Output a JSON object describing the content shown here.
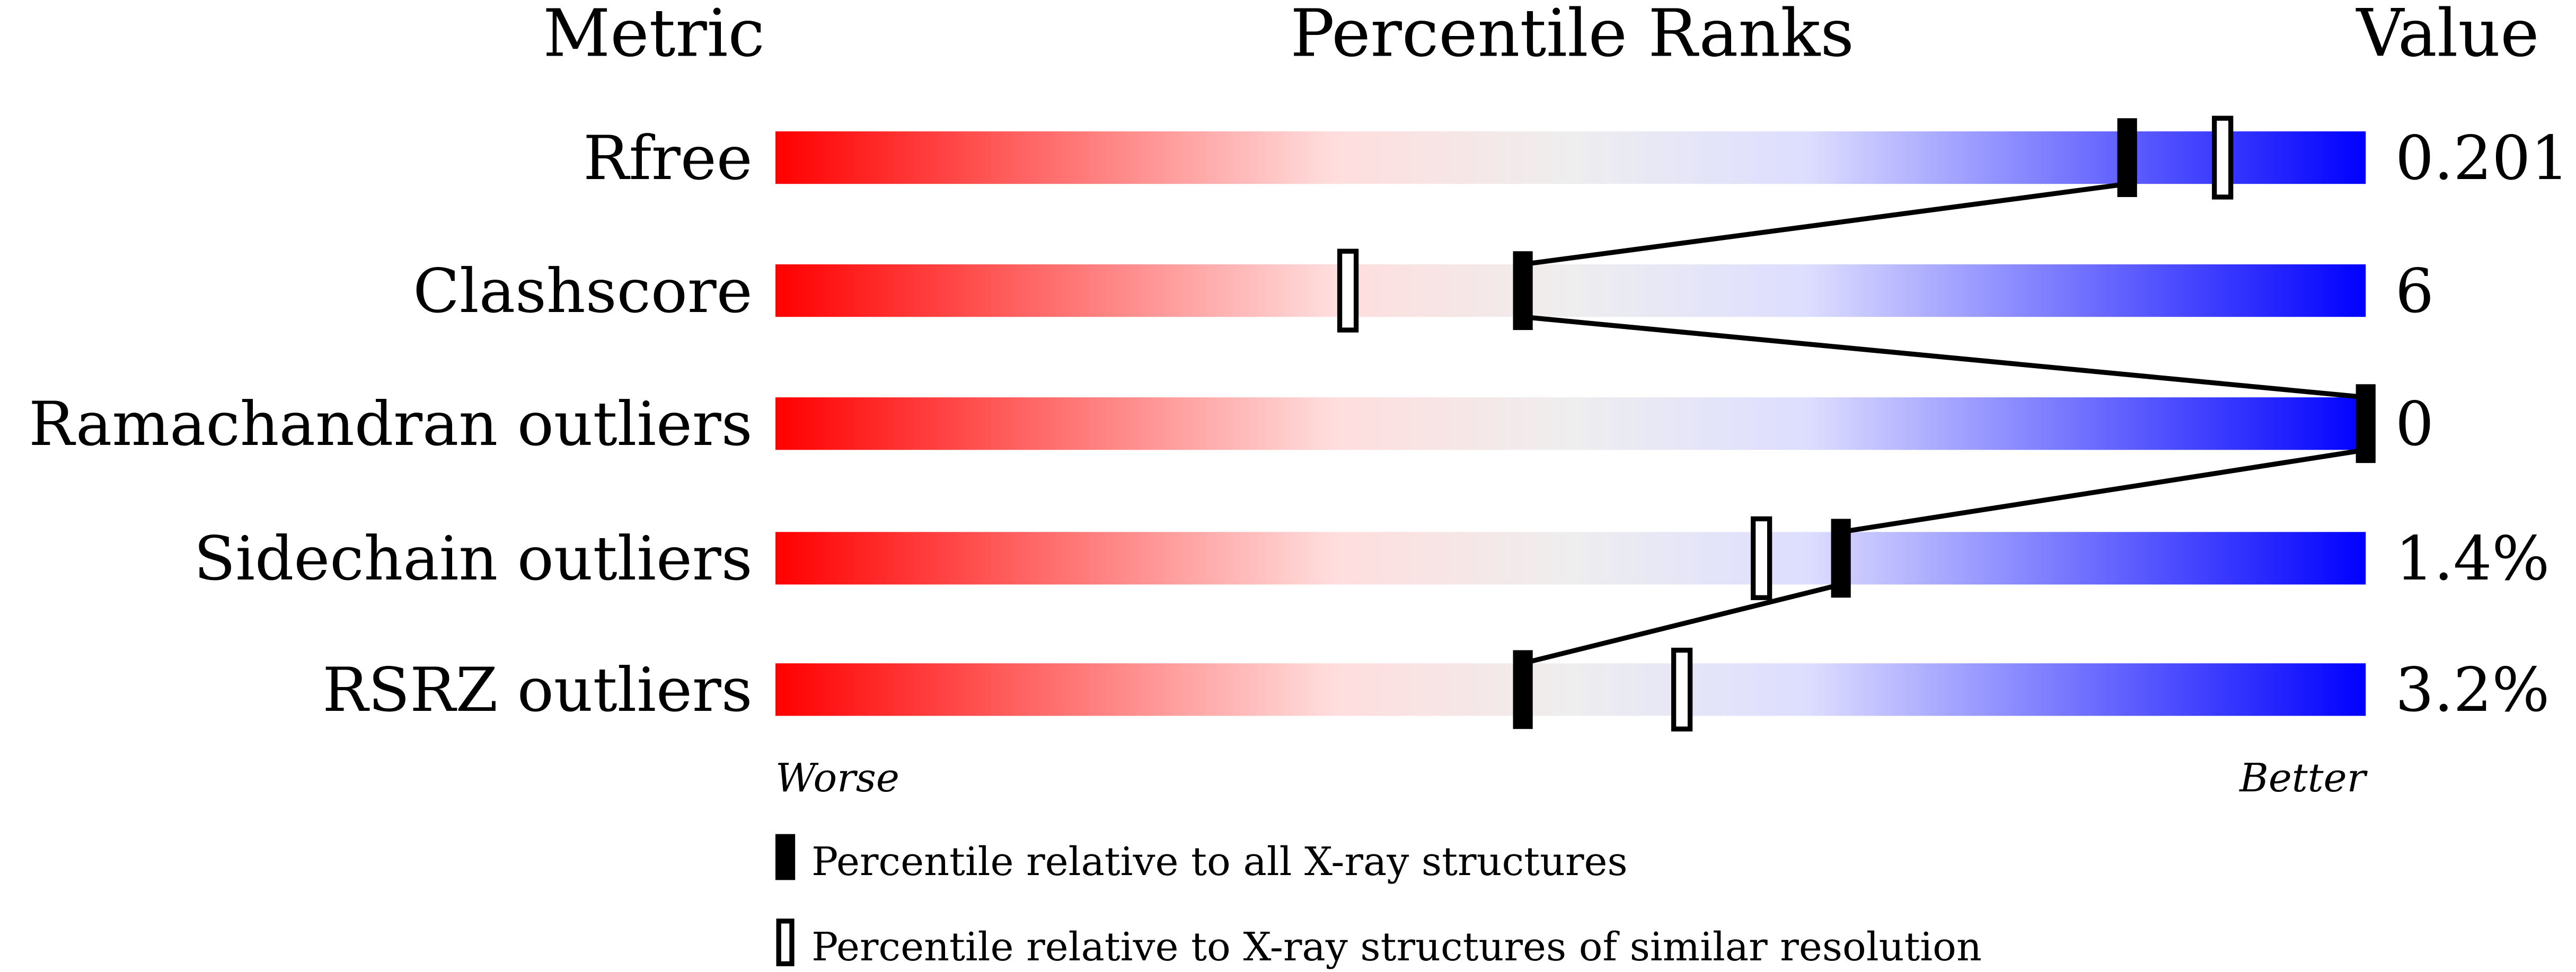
{
  "chart_data": {
    "type": "bar",
    "headers": {
      "metric": "Metric",
      "ranks": "Percentile Ranks",
      "value": "Value"
    },
    "xlim": [
      0,
      100
    ],
    "axis_labels": {
      "left": "Worse",
      "right": "Better"
    },
    "gradient_colors": [
      "#ff0000",
      "#ffdddd",
      "#eeeeee",
      "#ddddff",
      "#0000ff"
    ],
    "rows": [
      {
        "metric": "Rfree",
        "value": "0.201",
        "percentile_all": 85,
        "percentile_similar": 91
      },
      {
        "metric": "Clashscore",
        "value": "6",
        "percentile_all": 47,
        "percentile_similar": 36
      },
      {
        "metric": "Ramachandran outliers",
        "value": "0",
        "percentile_all": 100,
        "percentile_similar": null
      },
      {
        "metric": "Sidechain outliers",
        "value": "1.4%",
        "percentile_all": 67,
        "percentile_similar": 62
      },
      {
        "metric": "RSRZ outliers",
        "value": "3.2%",
        "percentile_all": 47,
        "percentile_similar": 57
      }
    ],
    "legend": {
      "all": "Percentile relative to all X-ray structures",
      "similar": "Percentile relative to X-ray structures of similar resolution"
    }
  }
}
